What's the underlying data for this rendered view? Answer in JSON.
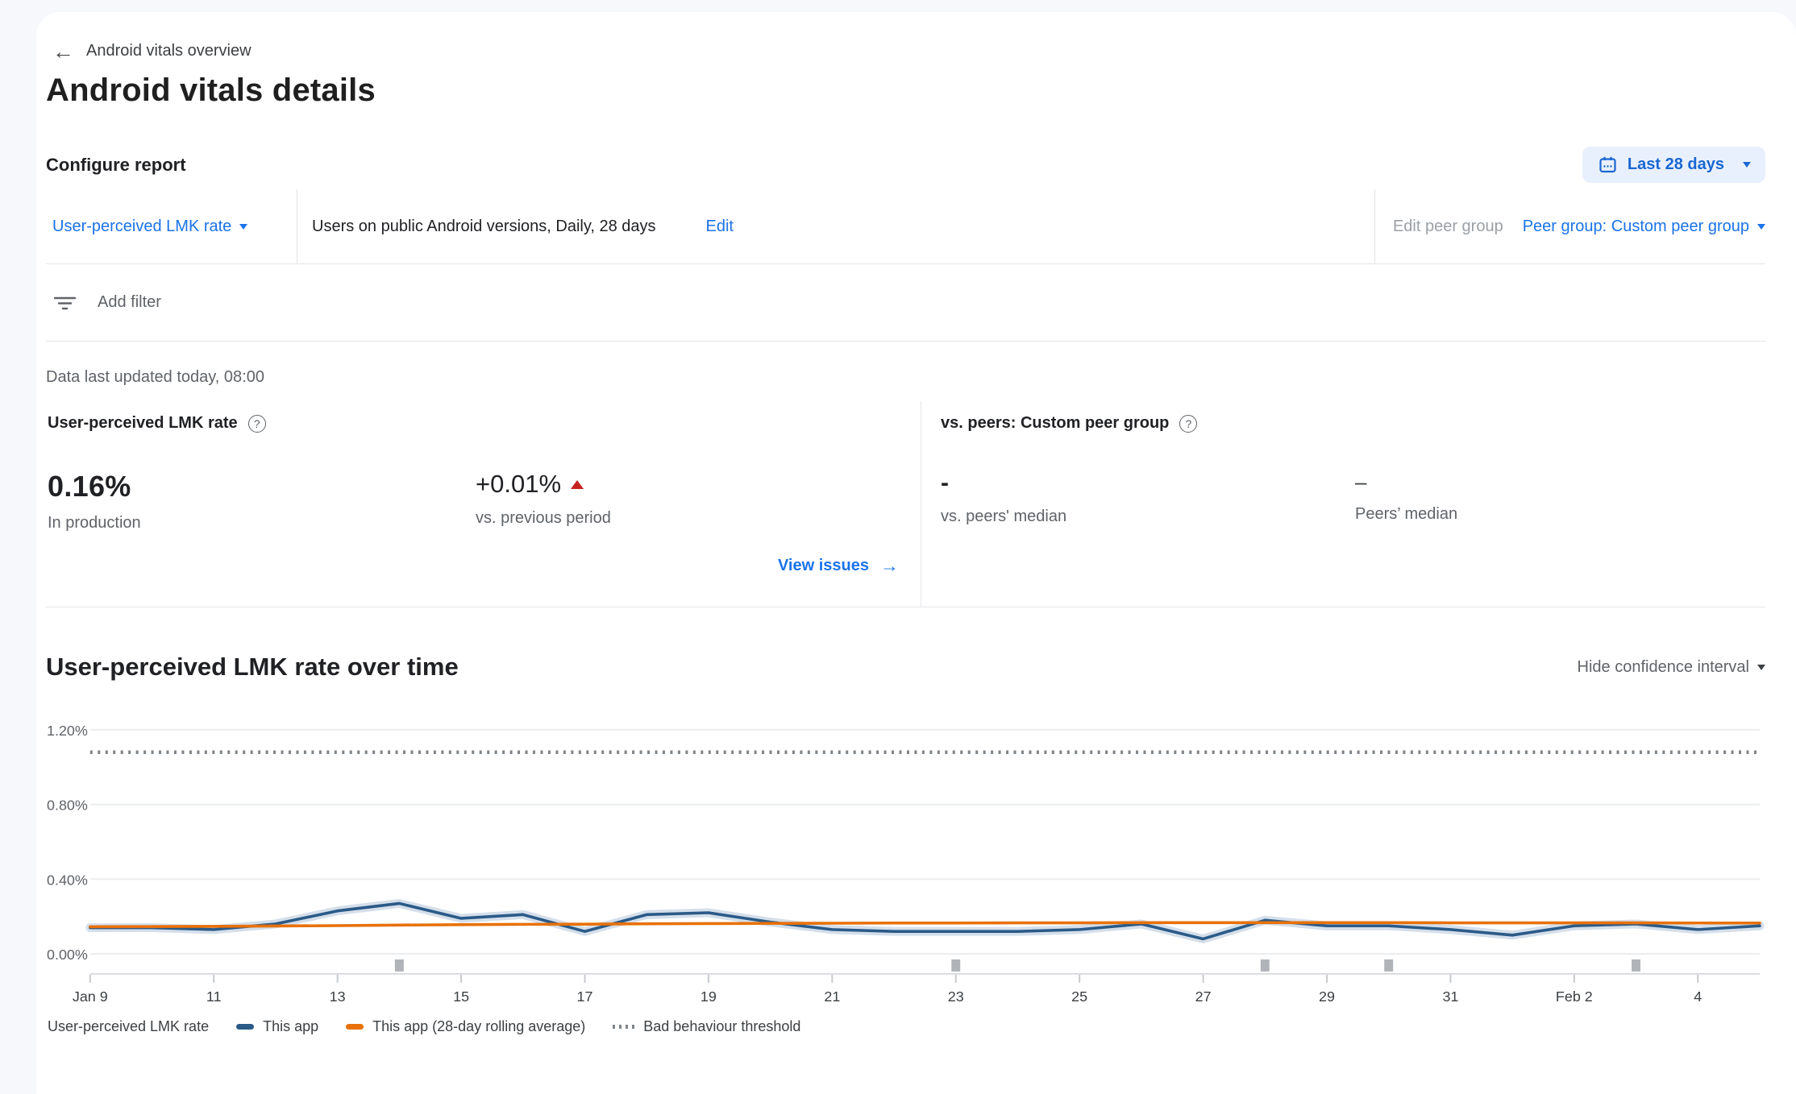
{
  "icons": {
    "back_arrow": "←",
    "forward_arrow": "→",
    "help": "?"
  },
  "header": {
    "back_label": "Android vitals overview",
    "title": "Android vitals details"
  },
  "configure": {
    "section_title": "Configure report",
    "date_range": "Last 28 days",
    "metric_selector": "User-perceived LMK rate",
    "metric_description": "Users on public Android versions, Daily, 28 days",
    "edit_label": "Edit",
    "edit_peer_group_label": "Edit peer group",
    "peer_group_selector": "Peer group: Custom peer group",
    "add_filter_label": "Add filter"
  },
  "status_line": "Data last updated today, 08:00",
  "summary": {
    "left": {
      "title": "User-perceived LMK rate",
      "value": "0.16%",
      "value_caption": "In production",
      "delta": "+0.01%",
      "delta_caption": "vs. previous period",
      "link_label": "View issues"
    },
    "right": {
      "title": "vs. peers: Custom peer group",
      "value1": "-",
      "caption1": "vs. peers' median",
      "value2": "–",
      "caption2": "Peers’ median"
    }
  },
  "chart_section": {
    "title": "User-perceived LMK rate over time",
    "ci_toggle_label": "Hide confidence interval",
    "legend_prefix": "User-perceived LMK rate"
  },
  "chart_data": {
    "type": "line",
    "title": "User-perceived LMK rate over time",
    "x": [
      "Jan 9",
      "Jan 10",
      "Jan 11",
      "Jan 12",
      "Jan 13",
      "Jan 14",
      "Jan 15",
      "Jan 16",
      "Jan 17",
      "Jan 18",
      "Jan 19",
      "Jan 20",
      "Jan 21",
      "Jan 22",
      "Jan 23",
      "Jan 24",
      "Jan 25",
      "Jan 26",
      "Jan 27",
      "Jan 28",
      "Jan 29",
      "Jan 30",
      "Jan 31",
      "Feb 1",
      "Feb 2",
      "Feb 3",
      "Feb 4",
      "Feb 5"
    ],
    "series": [
      {
        "name": "This app",
        "color": "#2b5a87",
        "values": [
          0.14,
          0.14,
          0.13,
          0.16,
          0.23,
          0.27,
          0.19,
          0.21,
          0.12,
          0.21,
          0.22,
          0.17,
          0.13,
          0.12,
          0.12,
          0.12,
          0.13,
          0.16,
          0.08,
          0.18,
          0.15,
          0.15,
          0.13,
          0.1,
          0.15,
          0.16,
          0.13,
          0.15
        ]
      },
      {
        "name": "This app (28-day rolling average)",
        "color": "#e8710a",
        "values": [
          0.145,
          0.146,
          0.147,
          0.149,
          0.151,
          0.154,
          0.156,
          0.158,
          0.159,
          0.161,
          0.162,
          0.163,
          0.164,
          0.165,
          0.165,
          0.166,
          0.166,
          0.167,
          0.167,
          0.167,
          0.167,
          0.167,
          0.166,
          0.166,
          0.166,
          0.166,
          0.165,
          0.165
        ]
      }
    ],
    "threshold": {
      "name": "Bad behaviour threshold",
      "value": 1.08,
      "style": "dotted",
      "color": "#7d848a"
    },
    "y_ticks": [
      {
        "value": 0.0,
        "label": "0.00%"
      },
      {
        "value": 0.4,
        "label": "0.40%"
      },
      {
        "value": 0.8,
        "label": "0.80%"
      },
      {
        "value": 1.2,
        "label": "1.20%"
      }
    ],
    "x_ticks": [
      {
        "index": 0,
        "label": "Jan 9"
      },
      {
        "index": 2,
        "label": "11"
      },
      {
        "index": 4,
        "label": "13"
      },
      {
        "index": 6,
        "label": "15"
      },
      {
        "index": 8,
        "label": "17"
      },
      {
        "index": 10,
        "label": "19"
      },
      {
        "index": 12,
        "label": "21"
      },
      {
        "index": 14,
        "label": "23"
      },
      {
        "index": 16,
        "label": "25"
      },
      {
        "index": 18,
        "label": "27"
      },
      {
        "index": 20,
        "label": "29"
      },
      {
        "index": 22,
        "label": "31"
      },
      {
        "index": 24,
        "label": "Feb 2"
      },
      {
        "index": 26,
        "label": "4"
      }
    ],
    "release_marker_indices": [
      5,
      14,
      19,
      21,
      25
    ],
    "ylim": [
      0,
      1.2
    ],
    "grid": true,
    "legend_position": "bottom",
    "confidence_interval_shown": true
  }
}
